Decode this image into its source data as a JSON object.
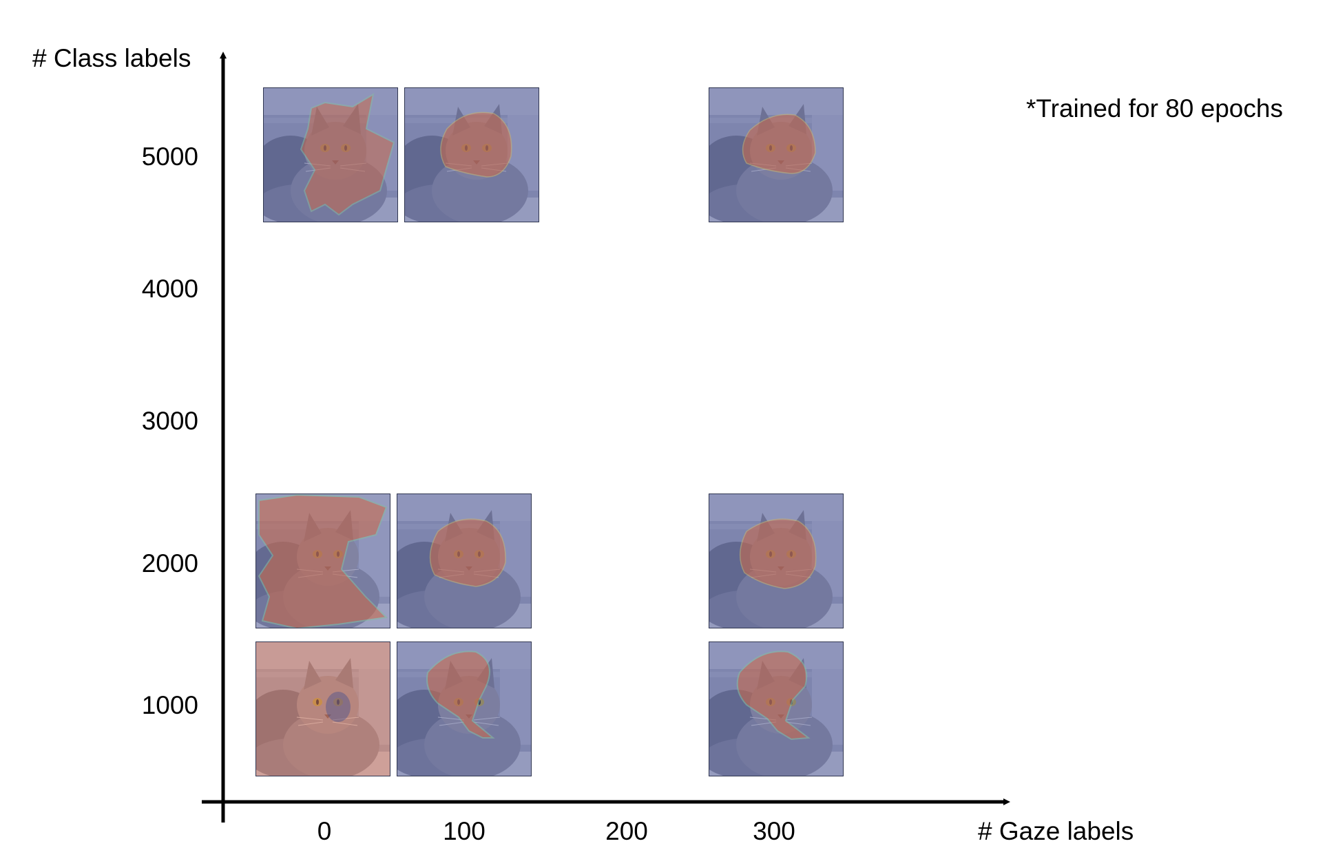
{
  "figure": {
    "y_axis_label": "# Class labels",
    "x_axis_label": "# Gaze labels",
    "note": "*Trained for 80 epochs",
    "y_ticks": [
      "1000",
      "2000",
      "3000",
      "4000",
      "5000"
    ],
    "x_ticks": [
      "0",
      "100",
      "200",
      "300"
    ]
  },
  "cells": [
    {
      "gaze_labels": 0,
      "class_labels": 5000,
      "attention": "broad-head-and-body"
    },
    {
      "gaze_labels": 100,
      "class_labels": 5000,
      "attention": "head"
    },
    {
      "gaze_labels": 300,
      "class_labels": 5000,
      "attention": "head"
    },
    {
      "gaze_labels": 0,
      "class_labels": 2000,
      "attention": "whole-cat"
    },
    {
      "gaze_labels": 100,
      "class_labels": 2000,
      "attention": "head"
    },
    {
      "gaze_labels": 300,
      "class_labels": 2000,
      "attention": "head"
    },
    {
      "gaze_labels": 0,
      "class_labels": 1000,
      "attention": "whole-image"
    },
    {
      "gaze_labels": 100,
      "class_labels": 1000,
      "attention": "head-partial"
    },
    {
      "gaze_labels": 300,
      "class_labels": 1000,
      "attention": "head-partial"
    }
  ],
  "colors": {
    "background_overlay": "#5b6397",
    "attention_overlay": "#c86a4c",
    "cat_fur": "#8c8ea3",
    "axis": "#000000"
  }
}
